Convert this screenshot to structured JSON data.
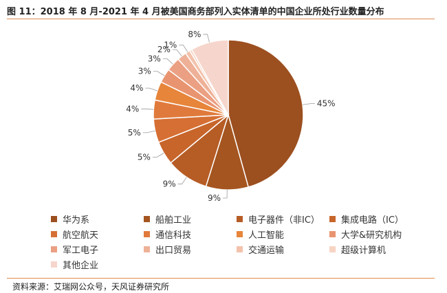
{
  "title": "图 11：2018 年 8 月-2021 年 4 月被美国商务部列入实体清单的中国企业所处行业数量分布",
  "source": "资料来源：艾瑞网公众号，天风证券研究所",
  "chart_data": {
    "type": "pie",
    "start_angle_deg": 0,
    "direction": "clockwise",
    "slices": [
      {
        "name": "华为系",
        "value": 45,
        "label": "45%",
        "color": "#9c4f1f"
      },
      {
        "name": "船舶工业",
        "value": 9,
        "label": "9%",
        "color": "#a5551f"
      },
      {
        "name": "电子器件（非IC）",
        "value": 9,
        "label": "9%",
        "color": "#b65c25"
      },
      {
        "name": "集成电路（IC）",
        "value": 5,
        "label": "5%",
        "color": "#c7652b"
      },
      {
        "name": "航空航天",
        "value": 5,
        "label": "5%",
        "color": "#d66f34"
      },
      {
        "name": "通信科技",
        "value": 4,
        "label": "4%",
        "color": "#e07a3c"
      },
      {
        "name": "人工智能",
        "value": 4,
        "label": "4%",
        "color": "#e7853a"
      },
      {
        "name": "大学&研究机构",
        "value": 3,
        "label": "3%",
        "color": "#e99470"
      },
      {
        "name": "军工电子",
        "value": 3,
        "label": "3%",
        "color": "#eba083"
      },
      {
        "name": "出口贸易",
        "value": 2,
        "label": "2%",
        "color": "#eeb197"
      },
      {
        "name": "交通运输",
        "value": 1,
        "label": "1%",
        "color": "#f3c2ac"
      },
      {
        "name": "超级计算机",
        "value": 0.5,
        "label": "",
        "color": "#f7d4c4"
      },
      {
        "name": "其他企业",
        "value": 8,
        "label": "8%",
        "color": "#f6d6cc"
      }
    ],
    "legend_position": "bottom"
  }
}
